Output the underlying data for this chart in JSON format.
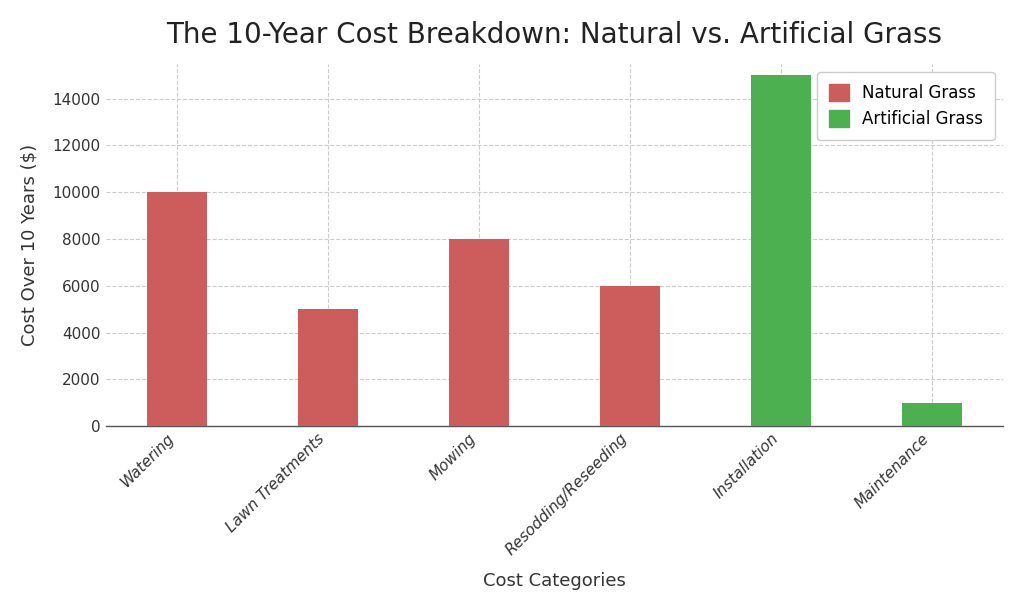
{
  "title": "The 10-Year Cost Breakdown: Natural vs. Artificial Grass",
  "xlabel": "Cost Categories",
  "ylabel": "Cost Over 10 Years ($)",
  "categories": [
    "Watering",
    "Lawn Treatments",
    "Mowing",
    "Resodding/Reseeding",
    "Installation",
    "Maintenance"
  ],
  "natural_grass": [
    10000,
    5000,
    8000,
    6000,
    0,
    0
  ],
  "artificial_grass": [
    0,
    0,
    0,
    0,
    15000,
    1000
  ],
  "natural_color": "#cd5c5c",
  "artificial_color": "#4caf50",
  "background_color": "#ffffff",
  "plot_bg_color": "#ffffff",
  "ylim": [
    0,
    15500
  ],
  "yticks": [
    0,
    2000,
    4000,
    6000,
    8000,
    10000,
    12000,
    14000
  ],
  "title_fontsize": 20,
  "axis_label_fontsize": 13,
  "tick_fontsize": 11,
  "legend_fontsize": 12,
  "bar_width": 0.4
}
